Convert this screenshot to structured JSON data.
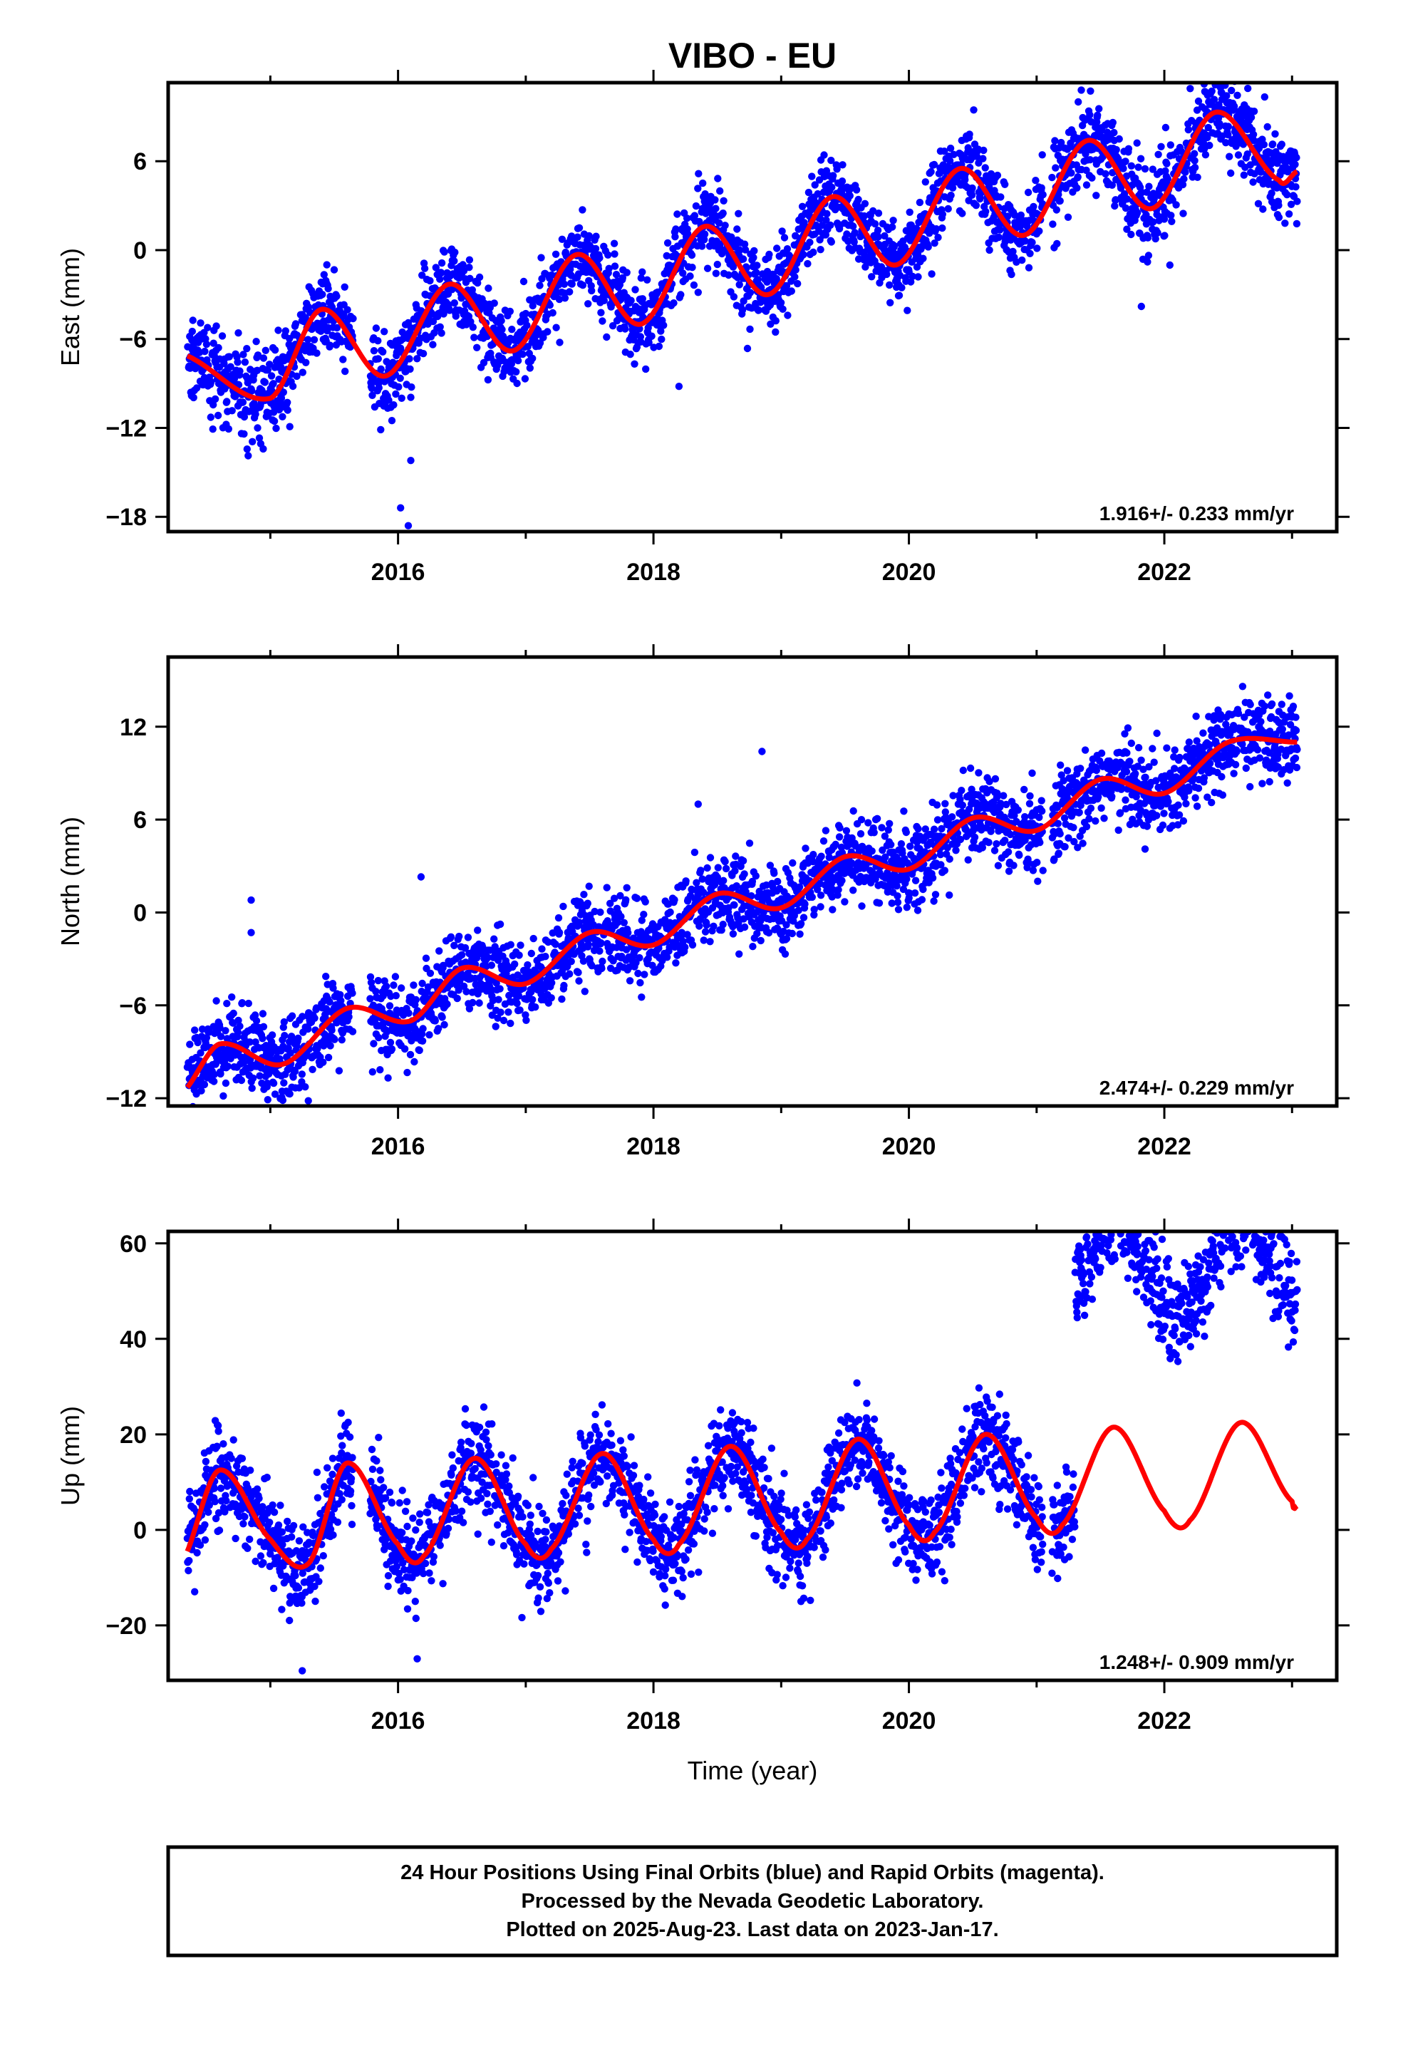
{
  "title": "VIBO - EU",
  "x_label": "Time (year)",
  "footer": {
    "line1": "24 Hour Positions Using Final Orbits (blue) and Rapid Orbits (magenta).",
    "line2": "Processed by the Nevada Geodetic Laboratory.",
    "line3": "Plotted on 2025-Aug-23. Last data on 2023-Jan-17."
  },
  "colors": {
    "final_orbits": "#0000ff",
    "model": "#ff0000",
    "frame": "#000000"
  },
  "chart_data": [
    {
      "type": "scatter",
      "component": "East",
      "ylabel": "East (mm)",
      "xlim": [
        2014.2,
        2023.35
      ],
      "ylim": [
        -19,
        11.3
      ],
      "xticks": [
        2016,
        2018,
        2020,
        2022
      ],
      "yticks": [
        -18,
        -12,
        -6,
        0,
        6
      ],
      "rate_text": "1.916+/- 0.233 mm/yr",
      "data_start": 2014.35,
      "data_end": 2023.04,
      "trend_points": [
        [
          2014.3,
          -7.0
        ],
        [
          2015.0,
          -10.0
        ],
        [
          2015.4,
          -4.0
        ],
        [
          2015.9,
          -8.5
        ],
        [
          2016.4,
          -2.3
        ],
        [
          2016.9,
          -6.8
        ],
        [
          2017.4,
          -0.3
        ],
        [
          2017.9,
          -5.0
        ],
        [
          2018.4,
          1.6
        ],
        [
          2018.9,
          -3.0
        ],
        [
          2019.4,
          3.6
        ],
        [
          2019.9,
          -1.0
        ],
        [
          2020.4,
          5.5
        ],
        [
          2020.9,
          1.0
        ],
        [
          2021.4,
          7.4
        ],
        [
          2021.9,
          2.8
        ],
        [
          2022.4,
          9.3
        ],
        [
          2022.9,
          4.7
        ],
        [
          2023.04,
          5.3
        ]
      ],
      "seasonal_amplitude": 2.3,
      "seasonal_phase_year": 2015.4,
      "scatter_noise_sd": 1.4,
      "gaps": [
        [
          2015.65,
          2015.78
        ],
        [
          2021.05,
          2021.12
        ]
      ],
      "outliers": [
        [
          2016.02,
          -17.4
        ],
        [
          2016.08,
          -18.6
        ],
        [
          2016.1,
          -14.2
        ],
        [
          2021.35,
          10.8
        ],
        [
          2021.82,
          -3.8
        ],
        [
          2018.2,
          -9.2
        ]
      ]
    },
    {
      "type": "scatter",
      "component": "North",
      "ylabel": "North (mm)",
      "xlim": [
        2014.2,
        2023.35
      ],
      "ylim": [
        -12.5,
        16.5
      ],
      "xticks": [
        2016,
        2018,
        2020,
        2022
      ],
      "yticks": [
        -12,
        -6,
        0,
        6,
        12
      ],
      "rate_text": "2.474+/- 0.229 mm/yr",
      "data_start": 2014.35,
      "data_end": 2023.04,
      "trend_points": [
        [
          2014.3,
          -11.7
        ],
        [
          2014.6,
          -8.5
        ],
        [
          2015.1,
          -9.8
        ],
        [
          2015.6,
          -6.2
        ],
        [
          2016.1,
          -7.0
        ],
        [
          2016.5,
          -3.6
        ],
        [
          2017.0,
          -4.6
        ],
        [
          2017.5,
          -1.3
        ],
        [
          2018.0,
          -2.1
        ],
        [
          2018.5,
          1.2
        ],
        [
          2019.0,
          0.3
        ],
        [
          2019.5,
          3.6
        ],
        [
          2020.0,
          2.8
        ],
        [
          2020.5,
          6.1
        ],
        [
          2021.0,
          5.3
        ],
        [
          2021.5,
          8.6
        ],
        [
          2022.0,
          7.7
        ],
        [
          2022.5,
          11.0
        ],
        [
          2023.04,
          11.0
        ]
      ],
      "seasonal_amplitude": 0.6,
      "seasonal_phase_year": 2014.6,
      "scatter_noise_sd": 1.3,
      "gaps": [
        [
          2015.65,
          2015.78
        ],
        [
          2021.05,
          2021.12
        ]
      ],
      "outliers": [
        [
          2014.85,
          0.8
        ],
        [
          2014.85,
          -1.3
        ],
        [
          2016.18,
          2.3
        ],
        [
          2018.35,
          7.0
        ],
        [
          2018.85,
          10.4
        ],
        [
          2015.8,
          -10.3
        ]
      ]
    },
    {
      "type": "scatter",
      "component": "Up",
      "ylabel": "Up (mm)",
      "xlim": [
        2014.2,
        2023.35
      ],
      "ylim": [
        -31.5,
        62.5
      ],
      "xticks": [
        2016,
        2018,
        2020,
        2022
      ],
      "yticks": [
        -20,
        0,
        20,
        40,
        60
      ],
      "rate_text": "1.248+/- 0.909 mm/yr",
      "data_start": 2014.35,
      "data_end": 2023.04,
      "trend_points": [
        [
          2014.3,
          -7.0
        ],
        [
          2014.6,
          12.5
        ],
        [
          2015.0,
          -2.0
        ],
        [
          2015.3,
          -7.0
        ],
        [
          2015.6,
          14.0
        ],
        [
          2016.0,
          -3.0
        ],
        [
          2016.2,
          -5.5
        ],
        [
          2016.6,
          15.0
        ],
        [
          2017.0,
          -3.0
        ],
        [
          2017.2,
          -4.0
        ],
        [
          2017.6,
          16.0
        ],
        [
          2018.0,
          -2.0
        ],
        [
          2018.2,
          -3.0
        ],
        [
          2018.6,
          17.5
        ],
        [
          2019.0,
          -0.5
        ],
        [
          2019.2,
          -2.0
        ],
        [
          2019.6,
          19.0
        ],
        [
          2020.0,
          1.0
        ],
        [
          2020.2,
          -0.5
        ],
        [
          2020.6,
          20.0
        ],
        [
          2021.0,
          2.5
        ],
        [
          2021.2,
          1.0
        ],
        [
          2021.6,
          21.5
        ],
        [
          2022.0,
          4.0
        ],
        [
          2022.2,
          2.0
        ],
        [
          2022.6,
          22.5
        ],
        [
          2023.0,
          6.0
        ],
        [
          2023.04,
          5.0
        ]
      ],
      "seasonal_amplitude": 8.5,
      "seasonal_phase_year": 2014.6,
      "scatter_noise_sd": 4.8,
      "offset_after": 2021.3,
      "offset_value": 44.0,
      "gaps": [
        [
          2015.65,
          2015.78
        ],
        [
          2021.05,
          2021.12
        ]
      ],
      "outliers": [
        [
          2021.55,
          58.0
        ],
        [
          2022.45,
          58.2
        ],
        [
          2022.62,
          61.0
        ],
        [
          2016.15,
          -27.0
        ],
        [
          2015.25,
          -29.5
        ]
      ]
    }
  ]
}
